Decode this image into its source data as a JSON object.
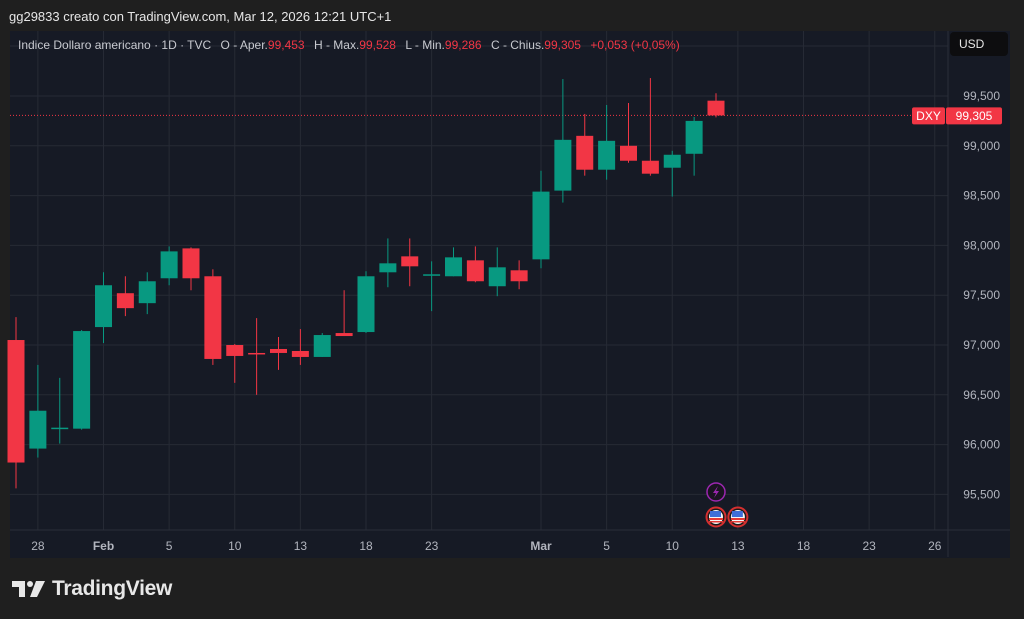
{
  "credit": "gg29833 creato con TradingView.com, Mar 12, 2026 12:21 UTC+1",
  "legend": {
    "symbol_name": "Indice Dollaro americano · 1D · TVC",
    "open_label": "O - Aper.",
    "open": "99,453",
    "high_label": "H - Max.",
    "high": "99,528",
    "low_label": "L - Min.",
    "low": "99,286",
    "close_label": "C - Chius.",
    "close": "99,305",
    "change": "+0,053 (+0,05%)"
  },
  "currency_button": "USD",
  "price_tag": {
    "symbol": "DXY",
    "value": "99,305"
  },
  "logo": {
    "text": "TradingView"
  },
  "colors": {
    "up": "#089981",
    "down": "#f23645",
    "background": "#161a25",
    "grid": "#262a35",
    "event": "#9c27b0"
  },
  "chart_data": {
    "type": "candlestick",
    "title": "",
    "ylim": [
      95.3,
      99.9
    ],
    "grid": true,
    "y_ticks": [
      {
        "value": 99.5,
        "label": "99,500"
      },
      {
        "value": 99.0,
        "label": "99,000"
      },
      {
        "value": 98.5,
        "label": "98,500"
      },
      {
        "value": 98.0,
        "label": "98,000"
      },
      {
        "value": 97.5,
        "label": "97,500"
      },
      {
        "value": 97.0,
        "label": "97,000"
      },
      {
        "value": 96.5,
        "label": "96,500"
      },
      {
        "value": 96.0,
        "label": "96,000"
      },
      {
        "value": 95.5,
        "label": "95,500"
      }
    ],
    "x_ticks": [
      {
        "date": "2026-01-28",
        "label": "28"
      },
      {
        "date": "2026-02-02",
        "label": "Feb",
        "bold": true
      },
      {
        "date": "2026-02-05",
        "label": "5"
      },
      {
        "date": "2026-02-10",
        "label": "10"
      },
      {
        "date": "2026-02-13",
        "label": "13"
      },
      {
        "date": "2026-02-18",
        "label": "18"
      },
      {
        "date": "2026-02-23",
        "label": "23"
      },
      {
        "date": "2026-03-02",
        "label": "Mar",
        "bold": true
      },
      {
        "date": "2026-03-05",
        "label": "5"
      },
      {
        "date": "2026-03-10",
        "label": "10"
      },
      {
        "date": "2026-03-13",
        "label": "13"
      },
      {
        "date": "2026-03-18",
        "label": "18"
      },
      {
        "date": "2026-03-23",
        "label": "23"
      },
      {
        "date": "2026-03-26",
        "label": "26"
      }
    ],
    "candles": [
      {
        "date": "2026-01-27",
        "o": 97.05,
        "h": 97.28,
        "l": 95.56,
        "c": 95.82
      },
      {
        "date": "2026-01-28",
        "o": 95.96,
        "h": 96.8,
        "l": 95.87,
        "c": 96.34
      },
      {
        "date": "2026-01-29",
        "o": 96.16,
        "h": 96.67,
        "l": 96.01,
        "c": 96.17
      },
      {
        "date": "2026-01-30",
        "o": 96.16,
        "h": 97.15,
        "l": 96.15,
        "c": 97.14
      },
      {
        "date": "2026-02-02",
        "o": 97.18,
        "h": 97.73,
        "l": 97.02,
        "c": 97.6
      },
      {
        "date": "2026-02-03",
        "o": 97.52,
        "h": 97.69,
        "l": 97.29,
        "c": 97.37
      },
      {
        "date": "2026-02-04",
        "o": 97.42,
        "h": 97.73,
        "l": 97.31,
        "c": 97.64
      },
      {
        "date": "2026-02-05",
        "o": 97.67,
        "h": 97.99,
        "l": 97.6,
        "c": 97.94
      },
      {
        "date": "2026-02-06",
        "o": 97.97,
        "h": 97.98,
        "l": 97.55,
        "c": 97.67
      },
      {
        "date": "2026-02-09",
        "o": 97.69,
        "h": 97.76,
        "l": 96.8,
        "c": 96.86
      },
      {
        "date": "2026-02-10",
        "o": 97.0,
        "h": 97.01,
        "l": 96.62,
        "c": 96.89
      },
      {
        "date": "2026-02-11",
        "o": 96.92,
        "h": 97.27,
        "l": 96.5,
        "c": 96.91
      },
      {
        "date": "2026-02-12",
        "o": 96.96,
        "h": 97.08,
        "l": 96.75,
        "c": 96.92
      },
      {
        "date": "2026-02-13",
        "o": 96.94,
        "h": 97.16,
        "l": 96.8,
        "c": 96.88
      },
      {
        "date": "2026-02-16",
        "o": 96.88,
        "h": 97.12,
        "l": 96.88,
        "c": 97.1
      },
      {
        "date": "2026-02-17",
        "o": 97.12,
        "h": 97.55,
        "l": 97.09,
        "c": 97.09
      },
      {
        "date": "2026-02-18",
        "o": 97.13,
        "h": 97.74,
        "l": 97.12,
        "c": 97.69
      },
      {
        "date": "2026-02-19",
        "o": 97.73,
        "h": 98.07,
        "l": 97.58,
        "c": 97.82
      },
      {
        "date": "2026-02-20",
        "o": 97.89,
        "h": 98.07,
        "l": 97.59,
        "c": 97.79
      },
      {
        "date": "2026-02-23",
        "o": 97.7,
        "h": 97.84,
        "l": 97.34,
        "c": 97.71
      },
      {
        "date": "2026-02-24",
        "o": 97.69,
        "h": 97.98,
        "l": 97.69,
        "c": 97.88
      },
      {
        "date": "2026-02-25",
        "o": 97.85,
        "h": 97.99,
        "l": 97.63,
        "c": 97.64
      },
      {
        "date": "2026-02-26",
        "o": 97.59,
        "h": 97.98,
        "l": 97.49,
        "c": 97.78
      },
      {
        "date": "2026-02-27",
        "o": 97.75,
        "h": 97.85,
        "l": 97.56,
        "c": 97.64
      },
      {
        "date": "2026-03-02",
        "o": 97.86,
        "h": 98.75,
        "l": 97.77,
        "c": 98.54
      },
      {
        "date": "2026-03-03",
        "o": 98.55,
        "h": 99.67,
        "l": 98.43,
        "c": 99.06
      },
      {
        "date": "2026-03-04",
        "o": 99.1,
        "h": 99.32,
        "l": 98.7,
        "c": 98.76
      },
      {
        "date": "2026-03-05",
        "o": 98.76,
        "h": 99.41,
        "l": 98.66,
        "c": 99.05
      },
      {
        "date": "2026-03-06",
        "o": 99.0,
        "h": 99.43,
        "l": 98.83,
        "c": 98.85
      },
      {
        "date": "2026-03-09",
        "o": 98.85,
        "h": 99.68,
        "l": 98.7,
        "c": 98.72
      },
      {
        "date": "2026-03-10",
        "o": 98.78,
        "h": 98.95,
        "l": 98.49,
        "c": 98.91
      },
      {
        "date": "2026-03-11",
        "o": 98.92,
        "h": 99.29,
        "l": 98.7,
        "c": 99.25
      },
      {
        "date": "2026-03-12",
        "o": 99.453,
        "h": 99.528,
        "l": 99.286,
        "c": 99.305
      }
    ],
    "last_price": 99.305,
    "events": [
      {
        "date": "2026-03-12",
        "icon": "lightning-icon",
        "row": 1
      },
      {
        "date": "2026-03-12",
        "icon": "us-flag-icon",
        "row": 2
      },
      {
        "date": "2026-03-13",
        "icon": "us-flag-icon",
        "row": 2
      }
    ]
  }
}
